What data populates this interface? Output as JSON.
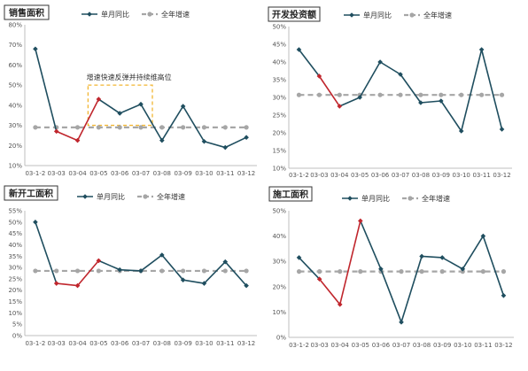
{
  "colors": {
    "series": "#1f4e5f",
    "highlight": "#c0262d",
    "average": "#a6a6a6",
    "annotation": "#f2b632"
  },
  "chart_data": [
    {
      "type": "line",
      "title": "销售面积",
      "categories": [
        "03-1-2",
        "03-03",
        "03-04",
        "03-05",
        "03-06",
        "03-07",
        "03-08",
        "03-09",
        "03-10",
        "03-11",
        "03-12"
      ],
      "ylim": [
        10,
        80
      ],
      "yticks": [
        10,
        20,
        30,
        40,
        50,
        60,
        70,
        80
      ],
      "series": [
        {
          "name": "单月同比",
          "values": [
            68,
            27,
            22.5,
            43,
            36,
            40.5,
            22.5,
            39.5,
            22,
            19,
            24
          ],
          "highlight": [
            1,
            2,
            3
          ]
        },
        {
          "name": "全年增速",
          "values": [
            29,
            29,
            29,
            29,
            29,
            29,
            29,
            29,
            29,
            29,
            29
          ]
        }
      ],
      "annotation": {
        "text": "增速快速反弹并持续维高位",
        "x_range": [
          "03-05",
          "03-07"
        ],
        "y_range": [
          30,
          50
        ]
      }
    },
    {
      "type": "line",
      "title": "开发投资额",
      "categories": [
        "03-1-2",
        "03-03",
        "03-04",
        "03-05",
        "03-06",
        "03-07",
        "03-08",
        "03-09",
        "03-10",
        "03-11",
        "03-12"
      ],
      "ylim": [
        10,
        50
      ],
      "yticks": [
        10,
        15,
        20,
        25,
        30,
        35,
        40,
        45,
        50
      ],
      "series": [
        {
          "name": "单月同比",
          "values": [
            43.5,
            36,
            27.5,
            30,
            40,
            36.5,
            28.5,
            29,
            20.5,
            43.5,
            21
          ],
          "highlight": [
            1,
            2
          ]
        },
        {
          "name": "全年增速",
          "values": [
            30.7,
            30.7,
            30.7,
            30.7,
            30.7,
            30.7,
            30.7,
            30.7,
            30.7,
            30.7,
            30.7
          ]
        }
      ]
    },
    {
      "type": "line",
      "title": "新开工面积",
      "categories": [
        "03-1-2",
        "03-03",
        "03-04",
        "03-05",
        "03-06",
        "03-07",
        "03-08",
        "03-09",
        "03-10",
        "03-11",
        "03-12"
      ],
      "ylim": [
        0,
        55
      ],
      "yticks": [
        0,
        5,
        10,
        15,
        20,
        25,
        30,
        35,
        40,
        45,
        50,
        55
      ],
      "series": [
        {
          "name": "单月同比",
          "values": [
            50,
            23,
            22,
            33,
            29,
            28.5,
            35.5,
            24.5,
            23,
            32.5,
            22
          ],
          "highlight": [
            1,
            2,
            3
          ]
        },
        {
          "name": "全年增速",
          "values": [
            28.5,
            28.5,
            28.5,
            28.5,
            28.5,
            28.5,
            28.5,
            28.5,
            28.5,
            28.5,
            28.5
          ]
        }
      ]
    },
    {
      "type": "line",
      "title": "施工面积",
      "categories": [
        "03-1-2",
        "03-03",
        "03-04",
        "03-05",
        "03-06",
        "03-07",
        "03-08",
        "03-09",
        "03-10",
        "03-11",
        "03-12"
      ],
      "ylim": [
        0,
        50
      ],
      "yticks": [
        0,
        10,
        20,
        30,
        40,
        50
      ],
      "series": [
        {
          "name": "单月同比",
          "values": [
            31.5,
            23,
            13,
            46,
            27,
            6,
            32,
            31.5,
            27,
            40,
            16.5
          ],
          "highlight": [
            1,
            2,
            3
          ]
        },
        {
          "name": "全年增速",
          "values": [
            26,
            26,
            26,
            26,
            26,
            26,
            26,
            26,
            26,
            26,
            26
          ]
        }
      ]
    }
  ]
}
